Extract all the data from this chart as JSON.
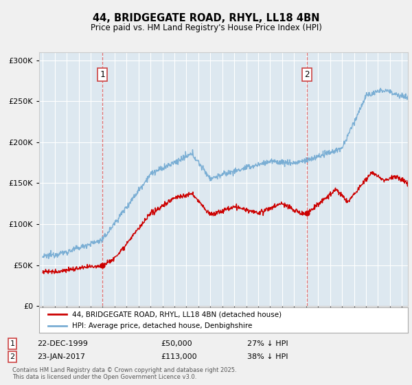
{
  "title": "44, BRIDGEGATE ROAD, RHYL, LL18 4BN",
  "subtitle": "Price paid vs. HM Land Registry's House Price Index (HPI)",
  "background_color": "#f0f0f0",
  "plot_background": "#dde8f0",
  "red_color": "#cc0000",
  "blue_color": "#7aaed4",
  "marker1_year": 1999.97,
  "marker1_value": 50000,
  "marker2_year": 2017.07,
  "marker2_value": 113000,
  "legend_entry1": "44, BRIDGEGATE ROAD, RHYL, LL18 4BN (detached house)",
  "legend_entry2": "HPI: Average price, detached house, Denbighshire",
  "note1_date": "22-DEC-1999",
  "note1_price": "£50,000",
  "note1_hpi": "27% ↓ HPI",
  "note2_date": "23-JAN-2017",
  "note2_price": "£113,000",
  "note2_hpi": "38% ↓ HPI",
  "footer": "Contains HM Land Registry data © Crown copyright and database right 2025.\nThis data is licensed under the Open Government Licence v3.0.",
  "ylim": [
    0,
    310000
  ],
  "xlim_start": 1994.7,
  "xlim_end": 2025.5
}
